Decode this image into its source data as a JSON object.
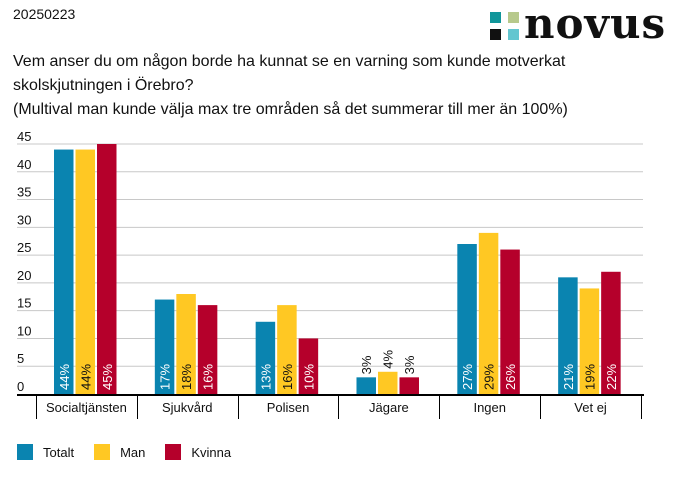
{
  "header": {
    "date": "20250223",
    "logo_text": "novus",
    "logo_colors": [
      "#10969a",
      "#b7c98c",
      "#111111",
      "#63c6d0"
    ]
  },
  "question": {
    "line1": "Vem anser du om någon borde ha kunnat se en varning som kunde motverkat",
    "line2": "skolskjutningen i Örebro?",
    "line3": "(Multival man kunde välja max tre områden så det summerar till mer än 100%)"
  },
  "chart_data": {
    "type": "bar",
    "title": "Vem anser du om någon borde ha kunnat se en varning som kunde motverkat skolskjutningen i Örebro?",
    "subtitle": "(Multival man kunde välja max tre områden så det summerar till mer än 100%)",
    "xlabel": "",
    "ylabel": "",
    "ylim": [
      0,
      45
    ],
    "yticks": [
      0,
      5,
      10,
      15,
      20,
      25,
      30,
      35,
      40,
      45
    ],
    "grid": true,
    "legend_position": "bottom-left",
    "categories": [
      "Socialtjänsten",
      "Sjukvård",
      "Polisen",
      "Jägare",
      "Ingen",
      "Vet ej"
    ],
    "series": [
      {
        "name": "Totalt",
        "color": "#0a84b0",
        "values": [
          44,
          17,
          13,
          3,
          27,
          21
        ],
        "labels": [
          "44%",
          "17%",
          "13%",
          "3%",
          "27%",
          "21%"
        ]
      },
      {
        "name": "Man",
        "color": "#ffc823",
        "values": [
          44,
          18,
          16,
          4,
          29,
          19
        ],
        "labels": [
          "44%",
          "18%",
          "16%",
          "4%",
          "29%",
          "19%"
        ]
      },
      {
        "name": "Kvinna",
        "color": "#b5002b",
        "values": [
          45,
          16,
          10,
          3,
          26,
          22
        ],
        "labels": [
          "45%",
          "16%",
          "10%",
          "3%",
          "26%",
          "22%"
        ]
      }
    ]
  }
}
